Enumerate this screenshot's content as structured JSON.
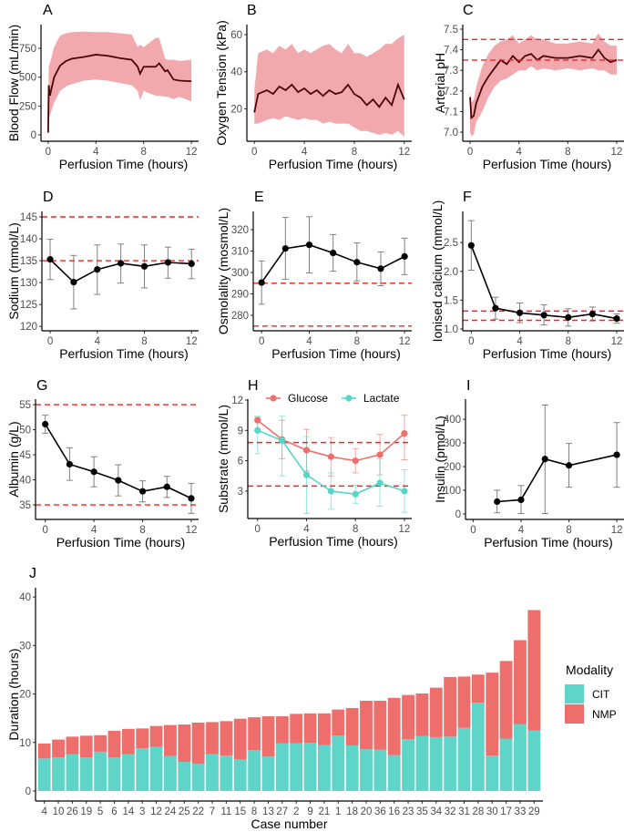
{
  "colors": {
    "band": "#f2a9ae",
    "mean_line": "#4a0606",
    "reference": "#ff2020",
    "errorbar": "#808080",
    "glucose": "#ef6f6a",
    "lactate": "#55d6c8",
    "cit": "#5fd5c9",
    "nmp": "#ee6e6c"
  },
  "chart_data": [
    {
      "panel": "A",
      "type": "area",
      "xlabel": "Perfusion Time (hours)",
      "ylabel": "Blood Flow (mL/min)",
      "xlim": [
        -0.6,
        12.6
      ],
      "ylim": [
        -55,
        955
      ],
      "xticks": [
        "0",
        "4",
        "8",
        "12"
      ],
      "yticks": [
        "0",
        "250",
        "500",
        "750"
      ],
      "reference_lines": [],
      "series": [
        {
          "x": [
            0,
            0.05,
            0.15,
            0.5,
            1,
            1.5,
            2,
            3,
            4,
            5,
            6,
            7,
            7.5,
            7.7,
            8,
            9,
            9.3,
            9.8,
            10,
            10.5,
            11,
            12
          ],
          "y": [
            20,
            430,
            340,
            500,
            600,
            640,
            660,
            675,
            695,
            685,
            665,
            650,
            590,
            530,
            590,
            590,
            620,
            550,
            560,
            480,
            470,
            465
          ],
          "lower": [
            0,
            150,
            170,
            280,
            380,
            420,
            440,
            470,
            480,
            470,
            450,
            430,
            380,
            300,
            380,
            340,
            340,
            330,
            330,
            310,
            330,
            290
          ],
          "upper": [
            40,
            600,
            620,
            760,
            860,
            880,
            890,
            895,
            890,
            890,
            880,
            870,
            760,
            780,
            760,
            840,
            840,
            660,
            650,
            650,
            640,
            650
          ]
        }
      ]
    },
    {
      "panel": "B",
      "type": "area",
      "xlabel": "Perfusion Time (hours)",
      "ylabel": "Oxygen Tension (kPa)",
      "xlim": [
        -0.6,
        12.6
      ],
      "ylim": [
        2.5,
        65.4
      ],
      "xticks": [
        "0",
        "4",
        "8",
        "12"
      ],
      "yticks": [
        "20",
        "40",
        "60"
      ],
      "reference_lines": [],
      "series": [
        {
          "x": [
            0,
            0.3,
            1,
            1.5,
            2,
            2.5,
            3,
            3.5,
            4,
            4.5,
            5,
            5.5,
            6,
            6.5,
            7,
            7.5,
            8,
            8.5,
            9,
            9.5,
            10,
            10.5,
            11,
            11.5,
            12
          ],
          "y": [
            18,
            28,
            30,
            28,
            32,
            30,
            33,
            29,
            31,
            28,
            30,
            27,
            30,
            28,
            29,
            33,
            28,
            26,
            22,
            25,
            21,
            26,
            22,
            33,
            25
          ],
          "lower": [
            12,
            12,
            14,
            15,
            14,
            16,
            15,
            14,
            15,
            14,
            14,
            12,
            13,
            12,
            12,
            12,
            10,
            8,
            8,
            7,
            6,
            7,
            6,
            8,
            5
          ],
          "upper": [
            30,
            50,
            52,
            50,
            54,
            52,
            55,
            50,
            52,
            50,
            52,
            54,
            55,
            52,
            50,
            55,
            50,
            50,
            48,
            50,
            52,
            55,
            55,
            58,
            60
          ]
        }
      ]
    },
    {
      "panel": "C",
      "type": "area",
      "xlabel": "Perfusion Time (hours)",
      "ylabel": "Arterial pH",
      "xlim": [
        -0.6,
        12.6
      ],
      "ylim": [
        6.956,
        7.522
      ],
      "xticks": [
        "0",
        "4",
        "8",
        "12"
      ],
      "yticks": [
        "7.0",
        "7.1",
        "7.2",
        "7.3",
        "7.4",
        "7.5"
      ],
      "reference_lines": [
        7.35,
        7.45
      ],
      "series": [
        {
          "x": [
            0,
            0.1,
            0.3,
            0.5,
            1,
            1.5,
            2,
            2.5,
            3,
            3.5,
            4,
            4.5,
            5,
            5.5,
            6,
            7,
            8,
            9,
            10,
            10.5,
            11,
            11.5,
            12
          ],
          "y": [
            7.17,
            7.07,
            7.08,
            7.14,
            7.22,
            7.27,
            7.31,
            7.35,
            7.33,
            7.37,
            7.34,
            7.37,
            7.38,
            7.35,
            7.37,
            7.36,
            7.36,
            7.37,
            7.36,
            7.4,
            7.36,
            7.34,
            7.35
          ],
          "lower": [
            7.0,
            6.98,
            6.99,
            7.05,
            7.1,
            7.17,
            7.22,
            7.25,
            7.26,
            7.28,
            7.3,
            7.3,
            7.32,
            7.3,
            7.31,
            7.3,
            7.31,
            7.3,
            7.31,
            7.3,
            7.3,
            7.28,
            7.28
          ],
          "upper": [
            7.2,
            7.14,
            7.16,
            7.22,
            7.32,
            7.38,
            7.42,
            7.44,
            7.45,
            7.47,
            7.43,
            7.45,
            7.47,
            7.45,
            7.45,
            7.43,
            7.43,
            7.44,
            7.43,
            7.48,
            7.44,
            7.42,
            7.42
          ]
        }
      ]
    },
    {
      "panel": "D",
      "type": "line",
      "xlabel": "Perfusion Time (hours)",
      "ylabel": "Sodium (mmol/L)",
      "xlim": [
        -0.7,
        12.6
      ],
      "ylim": [
        119,
        146.25
      ],
      "xticks": [
        "0",
        "4",
        "8",
        "12"
      ],
      "yticks": [
        "120",
        "125",
        "130",
        "135",
        "140",
        "145"
      ],
      "reference_lines": [
        135,
        145
      ],
      "series": [
        {
          "x": [
            0,
            2,
            4,
            6,
            8,
            10,
            12
          ],
          "y": [
            135.3,
            130.1,
            133.0,
            134.4,
            133.7,
            134.6,
            134.3
          ],
          "lower": [
            130.7,
            124.0,
            127.3,
            129.9,
            128.8,
            131.0,
            130.9
          ],
          "upper": [
            139.9,
            136.2,
            138.6,
            138.8,
            138.6,
            138.1,
            137.6
          ]
        }
      ]
    },
    {
      "panel": "E",
      "type": "line",
      "xlabel": "Perfusion Time (hours)",
      "ylabel": "Osmolality (mosmol/L)",
      "xlim": [
        -0.7,
        12.6
      ],
      "ylim": [
        272.8,
        328.5
      ],
      "xticks": [
        "0",
        "4",
        "8",
        "12"
      ],
      "yticks": [
        "280",
        "290",
        "300",
        "310",
        "320"
      ],
      "reference_lines": [
        275,
        295
      ],
      "series": [
        {
          "x": [
            0,
            2,
            4,
            6,
            8,
            10,
            12
          ],
          "y": [
            295.3,
            311.2,
            312.9,
            309.1,
            304.8,
            301.8,
            307.5
          ],
          "lower": [
            285.2,
            296.8,
            299.8,
            300.6,
            296.1,
            293.8,
            299.0
          ],
          "upper": [
            305.4,
            325.7,
            326.0,
            317.7,
            313.8,
            309.6,
            316.0
          ]
        }
      ]
    },
    {
      "panel": "F",
      "type": "line",
      "xlabel": "Perfusion Time (hours)",
      "ylabel": "Ionised calcium (mmol/L)",
      "xlim": [
        -0.7,
        12.6
      ],
      "ylim": [
        0.968,
        3.04
      ],
      "xticks": [
        "0",
        "4",
        "8",
        "12"
      ],
      "yticks": [
        "1.0",
        "1.5",
        "2.0",
        "2.5"
      ],
      "reference_lines": [
        1.15,
        1.31
      ],
      "series": [
        {
          "x": [
            0,
            2,
            4,
            6,
            8,
            10,
            12
          ],
          "y": [
            2.45,
            1.36,
            1.28,
            1.24,
            1.2,
            1.26,
            1.18
          ],
          "lower": [
            2.02,
            1.17,
            1.11,
            1.07,
            1.05,
            1.14,
            1.1
          ],
          "upper": [
            2.88,
            1.55,
            1.45,
            1.42,
            1.35,
            1.38,
            1.26
          ]
        }
      ]
    },
    {
      "panel": "G",
      "type": "line",
      "xlabel": "Perfusion Time (hours)",
      "ylabel": "Albumin (g/L)",
      "xlim": [
        -0.8,
        12.6
      ],
      "ylim": [
        32.1,
        56.1
      ],
      "xticks": [
        "0",
        "4",
        "8",
        "12"
      ],
      "yticks": [
        "35",
        "40",
        "45",
        "50",
        "55"
      ],
      "reference_lines": [
        35,
        55
      ],
      "series": [
        {
          "x": [
            0,
            2,
            4,
            6,
            8,
            10,
            12
          ],
          "y": [
            51.1,
            43.1,
            41.6,
            39.9,
            37.7,
            38.6,
            36.3
          ],
          "lower": [
            49.3,
            39.9,
            38.6,
            36.8,
            35.6,
            36.5,
            33.3
          ],
          "upper": [
            52.9,
            46.4,
            44.6,
            43.0,
            39.8,
            40.7,
            39.3
          ]
        }
      ]
    },
    {
      "panel": "H",
      "type": "line",
      "xlabel": "Perfusion Time (hours)",
      "ylabel": "Substrate (mmol/L)",
      "xlim": [
        -0.8,
        12.6
      ],
      "ylim": [
        0.29,
        12.09
      ],
      "xticks": [
        "0",
        "4",
        "8",
        "12"
      ],
      "yticks": [
        "3",
        "6",
        "9",
        "12"
      ],
      "reference_lines": [
        3.5,
        7.8
      ],
      "legend": "top",
      "series": [
        {
          "name": "Glucose",
          "x": [
            0,
            2,
            4,
            6,
            8,
            10,
            12
          ],
          "y": [
            10.0,
            8.1,
            7.05,
            6.4,
            6.0,
            6.6,
            8.7
          ],
          "lower": [
            9.0,
            6.2,
            5.0,
            4.5,
            4.8,
            4.6,
            6.1
          ],
          "upper": [
            10.3,
            10.0,
            9.1,
            8.3,
            7.2,
            8.6,
            10.5
          ]
        },
        {
          "name": "Lactate",
          "x": [
            0,
            2,
            4,
            6,
            8,
            10,
            12
          ],
          "y": [
            9.0,
            8.0,
            4.6,
            3.0,
            2.7,
            3.8,
            3.0
          ],
          "lower": [
            6.7,
            4.5,
            0.8,
            1.2,
            1.8,
            1.5,
            0.9
          ],
          "upper": [
            10.4,
            10.4,
            8.4,
            4.8,
            3.6,
            6.2,
            5.1
          ]
        }
      ]
    },
    {
      "panel": "I",
      "type": "line",
      "xlabel": "Perfusion Time (hours)",
      "ylabel": "Insulin (pmol/L)",
      "xlim": [
        -0.64,
        12.6
      ],
      "ylim": [
        -23,
        485
      ],
      "xticks": [
        "0",
        "4",
        "8",
        "12"
      ],
      "yticks": [
        "0",
        "100",
        "200",
        "300",
        "400"
      ],
      "reference_lines": [],
      "series": [
        {
          "x": [
            2,
            4,
            6,
            8,
            12
          ],
          "y": [
            52,
            60,
            232,
            205,
            250
          ],
          "lower": [
            5,
            2,
            2,
            113,
            113
          ],
          "upper": [
            100,
            120,
            460,
            298,
            386
          ]
        }
      ]
    },
    {
      "panel": "J",
      "type": "bar",
      "stacked": true,
      "xlabel": "Case number",
      "ylabel": "Duration (hours)",
      "ylim": [
        -2.07,
        41.9
      ],
      "yticks": [
        "0",
        "10",
        "20",
        "30",
        "40"
      ],
      "legend_title": "Modality",
      "legend": "right",
      "categories": [
        "4",
        "10",
        "26",
        "19",
        "5",
        "6",
        "14",
        "3",
        "12",
        "24",
        "25",
        "22",
        "7",
        "11",
        "15",
        "8",
        "13",
        "27",
        "2",
        "9",
        "21",
        "1",
        "18",
        "20",
        "36",
        "16",
        "23",
        "35",
        "34",
        "32",
        "31",
        "28",
        "30",
        "17",
        "33",
        "29"
      ],
      "series": [
        {
          "name": "CIT",
          "values": [
            6.7,
            6.9,
            7.6,
            6.9,
            8.1,
            6.9,
            7.6,
            8.8,
            9.1,
            7.2,
            6.0,
            5.6,
            7.6,
            7.3,
            6.5,
            8.4,
            7.1,
            9.8,
            9.8,
            9.9,
            9.5,
            11.4,
            9.4,
            8.6,
            8.5,
            7.4,
            10.7,
            11.3,
            11.1,
            11.2,
            13.0,
            18.2,
            7.3,
            10.8,
            13.8,
            12.5
          ]
        },
        {
          "name": "NMP",
          "values": [
            3.1,
            3.7,
            3.6,
            4.5,
            3.4,
            5.5,
            5.2,
            4.1,
            4.3,
            6.4,
            7.7,
            8.5,
            6.6,
            7.1,
            8.4,
            6.8,
            8.3,
            5.6,
            6.1,
            6.1,
            6.5,
            5.4,
            7.7,
            10.0,
            10.1,
            11.8,
            9.1,
            8.8,
            10.2,
            12.3,
            10.6,
            5.8,
            17.1,
            16.0,
            17.3,
            24.8
          ]
        }
      ]
    }
  ]
}
